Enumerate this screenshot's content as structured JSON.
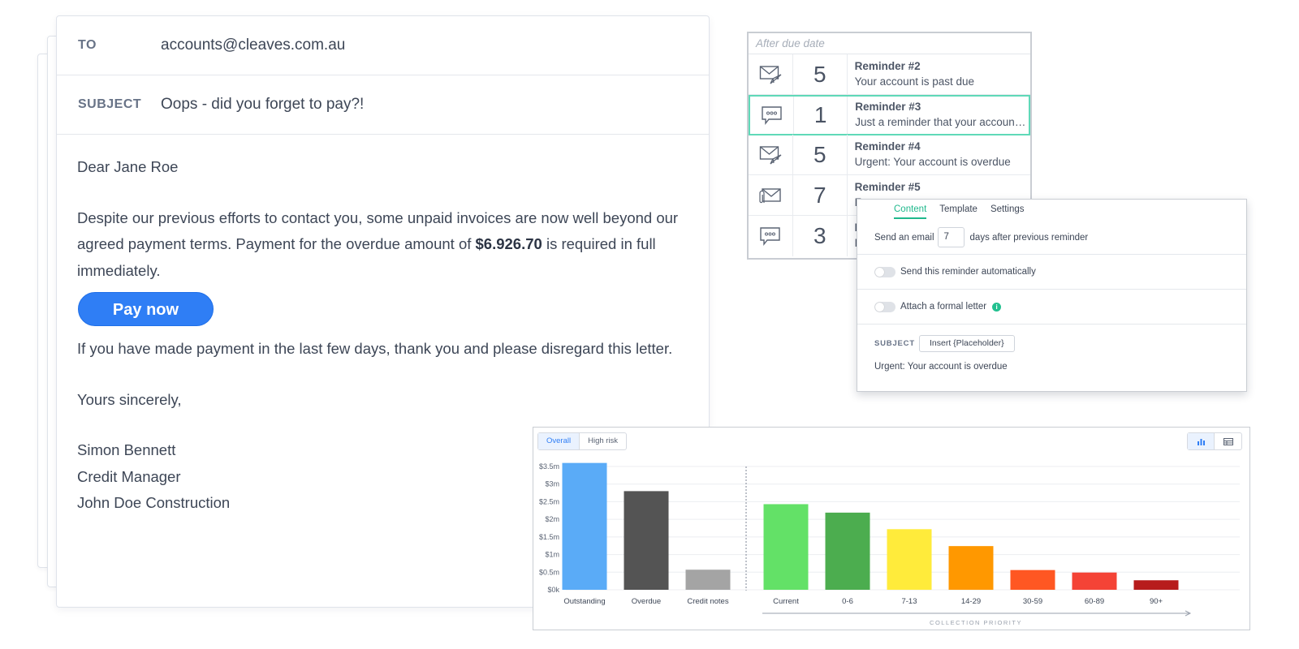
{
  "email": {
    "to_label": "TO",
    "to_value": "accounts@cleaves.com.au",
    "subject_label": "SUBJECT",
    "subject_value": "Oops - did you forget to pay?!",
    "greeting": "Dear Jane Roe",
    "para1_pre": "Despite our previous efforts to contact you, some unpaid invoices are now well beyond our agreed payment terms. Payment for the overdue amount of ",
    "para1_amount": "$6.926.70",
    "para1_post": " is required in full immediately.",
    "pay_button": "Pay now",
    "para2": "If you have made payment in the last few days, thank you and please disregard this letter.",
    "closing": "Yours sincerely,",
    "sig_name": "Simon Bennett",
    "sig_title": "Credit Manager",
    "sig_company": "John Doe Construction"
  },
  "reminders": {
    "header": "After due date",
    "items": [
      {
        "icon": "paper-plane-mail-icon",
        "days": "5",
        "title": "Reminder #2",
        "subtitle": "Your account is past due"
      },
      {
        "icon": "chat-bubble-icon",
        "days": "1",
        "title": "Reminder #3",
        "subtitle": "Just a reminder that your account is overdue"
      },
      {
        "icon": "paper-plane-mail-icon",
        "days": "5",
        "title": "Reminder #4",
        "subtitle": "Urgent: Your account is overdue"
      },
      {
        "icon": "attachment-mail-icon",
        "days": "7",
        "title": "Reminder #5",
        "subtitle": "F"
      },
      {
        "icon": "chat-bubble-icon",
        "days": "3",
        "title": "R",
        "subtitle": "F"
      }
    ]
  },
  "settings": {
    "tabs": [
      "Content",
      "Template",
      "Settings"
    ],
    "send_prefix": "Send an email",
    "send_days": "7",
    "send_suffix": "days after previous reminder",
    "auto_label": "Send this reminder automatically",
    "formal_label": "Attach a formal letter",
    "info_glyph": "i",
    "subject_label": "SUBJECT",
    "placeholder_button": "Insert {Placeholder}",
    "subject_value": "Urgent: Your account is overdue"
  },
  "chart_controls": {
    "seg_overall": "Overall",
    "seg_high_risk": "High risk",
    "view_icons": [
      "bar-chart-icon",
      "table-icon"
    ]
  },
  "chart_data": {
    "type": "bar",
    "y_ticks": [
      "$0k",
      "$0.5m",
      "$1m",
      "$1.5m",
      "$2m",
      "$2.5m",
      "$3m",
      "$3.5m"
    ],
    "ylim": [
      0,
      3.5
    ],
    "categories": [
      "Outstanding",
      "Overdue",
      "Credit notes",
      "Current",
      "0-6",
      "7-13",
      "14-29",
      "30-59",
      "60-89",
      "90+"
    ],
    "values": [
      3.6,
      2.8,
      0.57,
      2.43,
      2.19,
      1.72,
      1.24,
      0.56,
      0.49,
      0.27
    ],
    "colors": [
      "#5aabf7",
      "#545454",
      "#a4a4a4",
      "#63e167",
      "#4cad4f",
      "#ffeb3b",
      "#ff9800",
      "#ff5722",
      "#f44336",
      "#b71c1c"
    ],
    "annotation": "COLLECTION PRIORITY",
    "grid": true
  }
}
